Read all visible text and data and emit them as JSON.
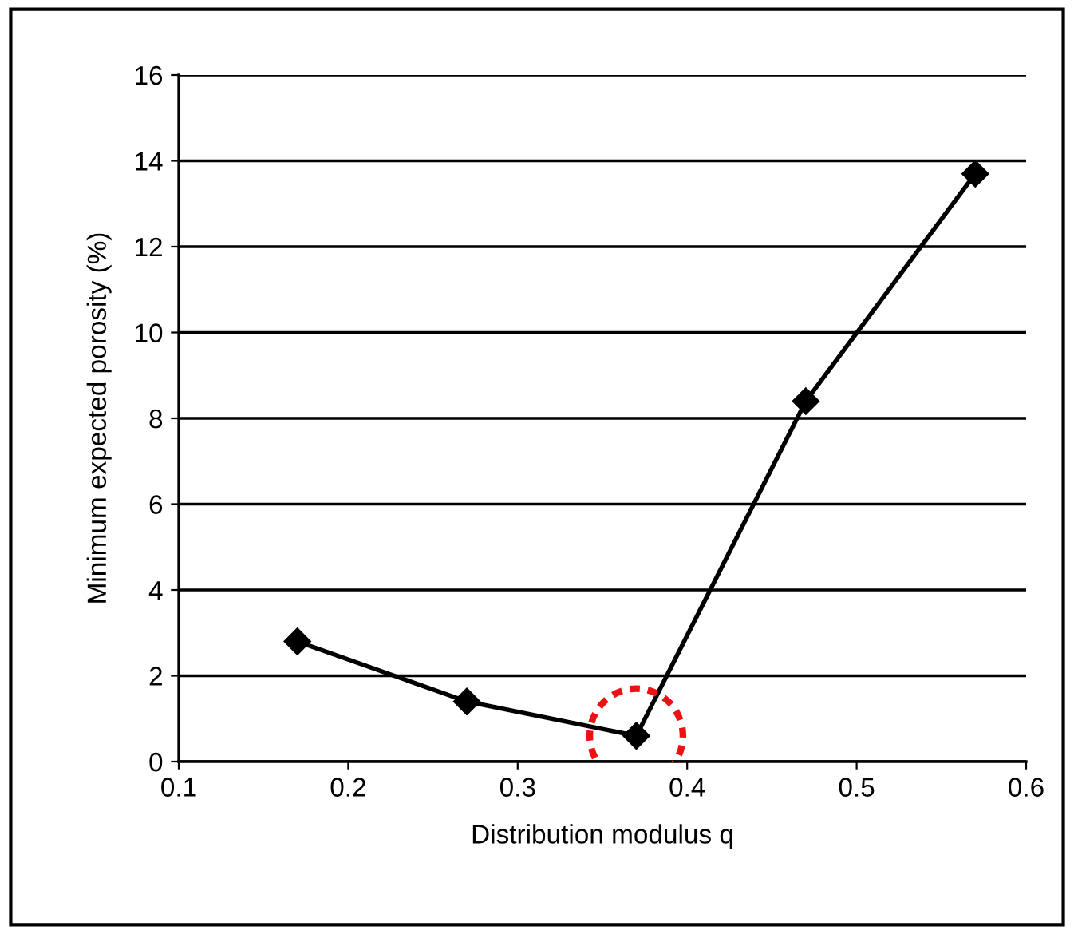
{
  "chart_data": {
    "type": "line",
    "xlabel": "Distribution modulus q",
    "ylabel": "Minimum expected porosity (%)",
    "x": [
      0.17,
      0.27,
      0.37,
      0.47,
      0.57
    ],
    "series": [
      {
        "color": "#000000",
        "values": [
          2.8,
          1.4,
          0.6,
          8.4,
          13.7
        ]
      }
    ],
    "xlim": [
      0.1,
      0.6
    ],
    "xticks": [
      0.1,
      0.2,
      0.3,
      0.4,
      0.5,
      0.6
    ],
    "ylim": [
      0,
      16
    ],
    "yticks": [
      0,
      2,
      4,
      6,
      8,
      10,
      12,
      14,
      16
    ],
    "grid": "y",
    "marker": "diamond",
    "line_style": "solid",
    "legend": false
  }
}
